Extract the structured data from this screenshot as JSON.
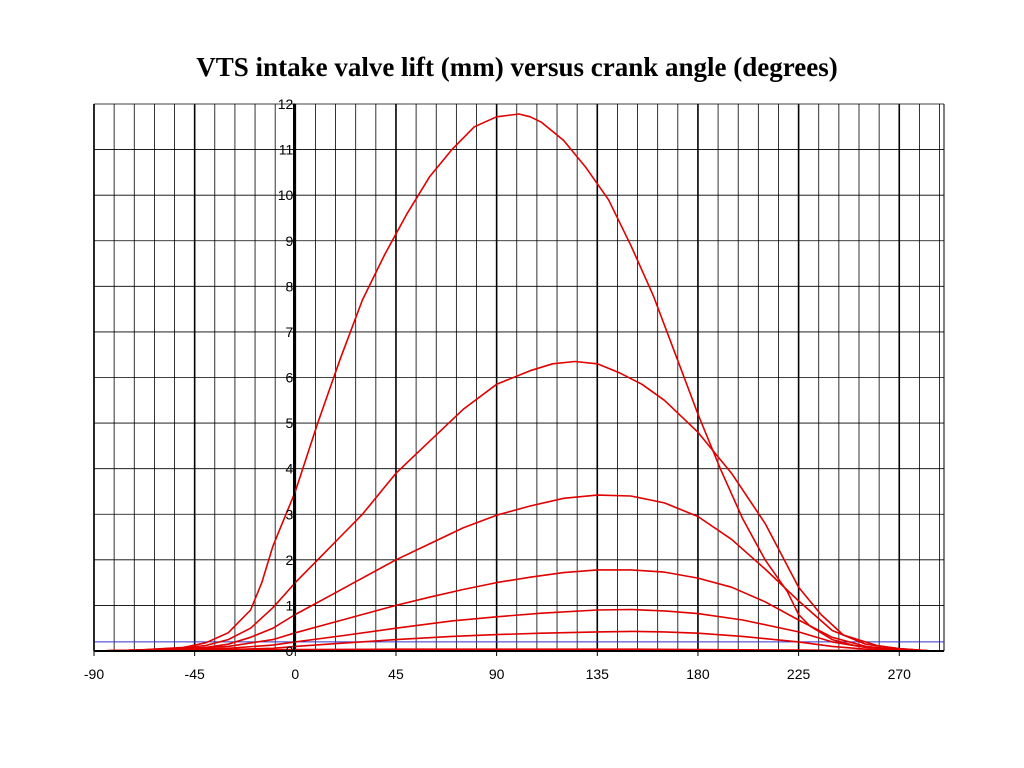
{
  "chart_data": {
    "type": "line",
    "title": "VTS intake valve lift (mm) versus crank angle (degrees)",
    "xlabel": "",
    "ylabel": "",
    "xlim": [
      -90,
      290
    ],
    "ylim": [
      0,
      12
    ],
    "x_ticks": [
      -90,
      -45,
      0,
      45,
      90,
      135,
      180,
      225,
      270
    ],
    "y_ticks": [
      0,
      1,
      2,
      3,
      4,
      5,
      6,
      7,
      8,
      9,
      10,
      11,
      12
    ],
    "grid": true,
    "reference_line": {
      "y": 0.2,
      "color": "#3333cc"
    },
    "series_color": "#e00000",
    "series": [
      {
        "x": [
          -90,
          -70,
          -50,
          -40,
          -30,
          -20,
          -15,
          -10,
          -5,
          0,
          10,
          20,
          30,
          40,
          50,
          60,
          70,
          80,
          90,
          100,
          105,
          110,
          120,
          130,
          140,
          150,
          160,
          170,
          180,
          190,
          200,
          210,
          220,
          225,
          230,
          240,
          250,
          260,
          270,
          285
        ],
        "values": [
          0,
          0.02,
          0.08,
          0.18,
          0.4,
          0.9,
          1.5,
          2.3,
          2.9,
          3.5,
          5.0,
          6.4,
          7.7,
          8.7,
          9.6,
          10.4,
          11.0,
          11.5,
          11.72,
          11.78,
          11.72,
          11.6,
          11.2,
          10.6,
          9.9,
          8.9,
          7.8,
          6.5,
          5.2,
          4.0,
          2.9,
          2.0,
          1.3,
          0.8,
          0.55,
          0.25,
          0.12,
          0.06,
          0.03,
          0
        ]
      },
      {
        "x": [
          -90,
          -70,
          -50,
          -40,
          -30,
          -20,
          -10,
          0,
          10,
          20,
          30,
          45,
          60,
          75,
          90,
          105,
          115,
          125,
          135,
          145,
          155,
          165,
          180,
          195,
          210,
          225,
          235,
          245,
          260,
          270,
          285
        ],
        "values": [
          0,
          0.02,
          0.07,
          0.12,
          0.25,
          0.5,
          0.95,
          1.5,
          2.0,
          2.5,
          3.0,
          3.9,
          4.6,
          5.3,
          5.85,
          6.15,
          6.3,
          6.35,
          6.3,
          6.1,
          5.85,
          5.5,
          4.8,
          3.9,
          2.8,
          1.4,
          0.8,
          0.35,
          0.12,
          0.05,
          0
        ]
      },
      {
        "x": [
          -90,
          -70,
          -50,
          -40,
          -30,
          -20,
          -10,
          0,
          15,
          30,
          45,
          60,
          75,
          90,
          105,
          120,
          135,
          150,
          165,
          180,
          195,
          210,
          225,
          240,
          255,
          270,
          285
        ],
        "values": [
          0,
          0.02,
          0.05,
          0.08,
          0.15,
          0.3,
          0.5,
          0.8,
          1.2,
          1.6,
          2.0,
          2.35,
          2.7,
          2.98,
          3.18,
          3.35,
          3.42,
          3.4,
          3.25,
          2.95,
          2.45,
          1.8,
          1.1,
          0.45,
          0.15,
          0.05,
          0
        ]
      },
      {
        "x": [
          -90,
          -70,
          -50,
          -30,
          -10,
          0,
          15,
          30,
          45,
          60,
          75,
          90,
          105,
          120,
          135,
          150,
          165,
          180,
          195,
          210,
          225,
          240,
          255,
          270,
          285
        ],
        "values": [
          0,
          0.02,
          0.05,
          0.1,
          0.25,
          0.4,
          0.6,
          0.8,
          1.0,
          1.18,
          1.35,
          1.5,
          1.62,
          1.72,
          1.78,
          1.78,
          1.73,
          1.6,
          1.4,
          1.08,
          0.68,
          0.3,
          0.1,
          0.03,
          0
        ]
      },
      {
        "x": [
          -90,
          -70,
          -50,
          -30,
          -10,
          0,
          20,
          45,
          70,
          90,
          110,
          135,
          150,
          165,
          180,
          200,
          225,
          240,
          255,
          270,
          285
        ],
        "values": [
          0,
          0.02,
          0.04,
          0.06,
          0.13,
          0.2,
          0.33,
          0.5,
          0.66,
          0.75,
          0.83,
          0.9,
          0.91,
          0.88,
          0.82,
          0.68,
          0.42,
          0.2,
          0.08,
          0.03,
          0
        ]
      },
      {
        "x": [
          -90,
          -70,
          -50,
          -30,
          -10,
          0,
          20,
          45,
          70,
          90,
          110,
          135,
          150,
          165,
          180,
          200,
          225,
          240,
          255,
          270,
          285
        ],
        "values": [
          0,
          0.01,
          0.02,
          0.03,
          0.06,
          0.1,
          0.17,
          0.25,
          0.32,
          0.36,
          0.39,
          0.42,
          0.43,
          0.42,
          0.39,
          0.32,
          0.2,
          0.1,
          0.04,
          0.01,
          0
        ]
      },
      {
        "x": [
          -90,
          -60,
          -30,
          0,
          45,
          90,
          135,
          150,
          180,
          225,
          255,
          285
        ],
        "values": [
          0,
          0.01,
          0.02,
          0.03,
          0.04,
          0.04,
          0.04,
          0.04,
          0.03,
          0.02,
          0.01,
          0
        ]
      }
    ]
  }
}
